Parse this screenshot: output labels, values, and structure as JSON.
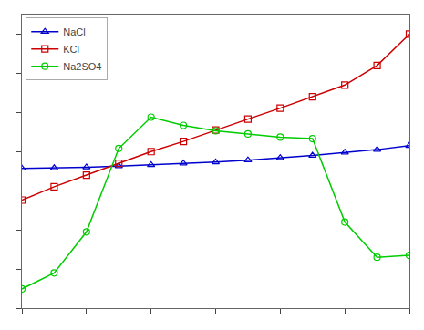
{
  "chart_data": {
    "type": "line",
    "series": [
      {
        "name": "NaCl",
        "color": "#0000cc",
        "marker": "triangle",
        "line_style": "solid",
        "x": [
          0,
          10,
          20,
          30,
          40,
          50,
          60,
          70,
          80,
          90,
          100,
          110,
          120
        ],
        "values": [
          35.7,
          35.8,
          36.0,
          36.3,
          36.6,
          37.0,
          37.3,
          37.8,
          38.4,
          39.0,
          39.8,
          40.5,
          41.5
        ]
      },
      {
        "name": "KCl",
        "color": "#cc0000",
        "marker": "square",
        "line_style": "solid",
        "x": [
          0,
          10,
          20,
          30,
          40,
          50,
          60,
          70,
          80,
          90,
          100,
          110,
          120
        ],
        "values": [
          27.6,
          31.0,
          34.0,
          37.0,
          40.0,
          42.6,
          45.5,
          48.3,
          51.1,
          54.0,
          57.0,
          62.0,
          70.0
        ]
      },
      {
        "name": "Na2SO4",
        "color": "#00cc00",
        "marker": "circle",
        "line_style": "solid",
        "x": [
          0,
          10,
          20,
          30,
          40,
          50,
          60,
          70,
          80,
          90,
          100,
          110,
          120
        ],
        "values": [
          4.9,
          9.0,
          19.5,
          40.8,
          48.8,
          46.7,
          45.3,
          44.5,
          43.7,
          43.3,
          22.0,
          13.0,
          13.5
        ]
      }
    ],
    "xlim": [
      0,
      120
    ],
    "xticks": [
      0,
      20,
      40,
      60,
      80,
      100,
      120
    ],
    "ylim": [
      0,
      75
    ],
    "yticks": [
      0,
      10,
      20,
      30,
      40,
      50,
      60,
      70
    ],
    "grid": false,
    "legend": "upper left",
    "tick_labels": false
  }
}
